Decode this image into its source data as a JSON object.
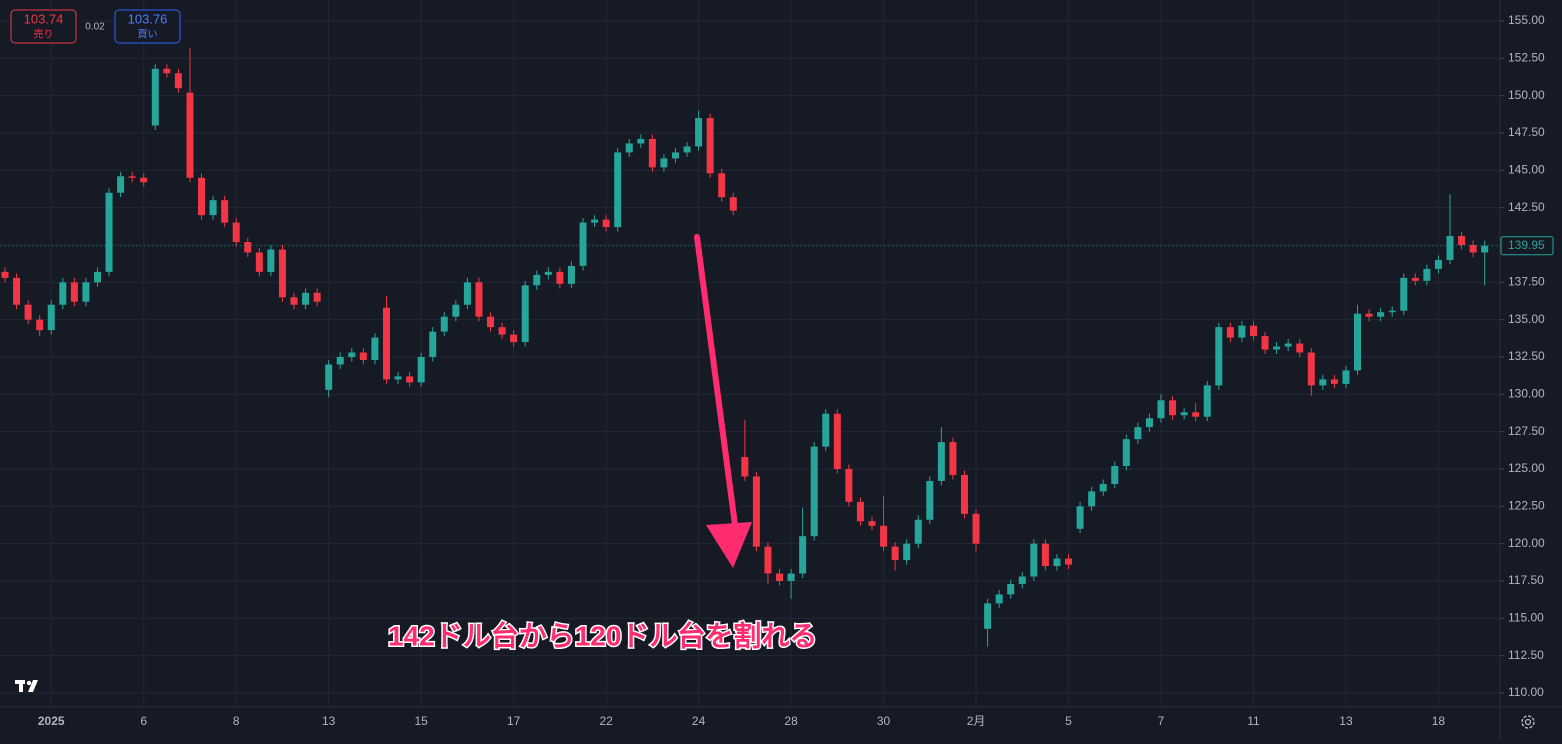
{
  "chart_data": {
    "type": "candlestick",
    "quote": {
      "sell_price": "103.74",
      "sell_label": "売り",
      "spread": "0.02",
      "buy_price": "103.76",
      "buy_label": "買い"
    },
    "annotation": "142ドル台から120ドル台を割れる",
    "up_color": "#26a69a",
    "down_color": "#f23645",
    "grid": true,
    "last_price": 139.95,
    "ylim": [
      110,
      155
    ],
    "yticks": [
      {
        "value": 110,
        "label": "110.00"
      },
      {
        "value": 112.5,
        "label": "112.50"
      },
      {
        "value": 115,
        "label": "115.00"
      },
      {
        "value": 117.5,
        "label": "117.50"
      },
      {
        "value": 120,
        "label": "120.00"
      },
      {
        "value": 122.5,
        "label": "122.50"
      },
      {
        "value": 125,
        "label": "125.00"
      },
      {
        "value": 127.5,
        "label": "127.50"
      },
      {
        "value": 130,
        "label": "130.00"
      },
      {
        "value": 132.5,
        "label": "132.50"
      },
      {
        "value": 135,
        "label": "135.00"
      },
      {
        "value": 137.5,
        "label": "137.50"
      },
      {
        "value": 140,
        "label": "140.00"
      },
      {
        "value": 142.5,
        "label": "142.50"
      },
      {
        "value": 145,
        "label": "145.00"
      },
      {
        "value": 147.5,
        "label": "147.50"
      },
      {
        "value": 150,
        "label": "150.00"
      },
      {
        "value": 152.5,
        "label": "152.50"
      },
      {
        "value": 155,
        "label": "155.00"
      }
    ],
    "categories": [
      null,
      null,
      null,
      null,
      "2025",
      null,
      null,
      null,
      null,
      null,
      null,
      null,
      "6",
      null,
      null,
      null,
      null,
      null,
      null,
      null,
      "8",
      null,
      null,
      null,
      null,
      null,
      null,
      null,
      "13",
      null,
      null,
      null,
      null,
      null,
      null,
      null,
      "15",
      null,
      null,
      null,
      null,
      null,
      null,
      null,
      "17",
      null,
      null,
      null,
      null,
      null,
      null,
      null,
      "22",
      null,
      null,
      null,
      null,
      null,
      null,
      null,
      "24",
      null,
      null,
      null,
      null,
      null,
      null,
      null,
      "28",
      null,
      null,
      null,
      null,
      null,
      null,
      null,
      "30",
      null,
      null,
      null,
      null,
      null,
      null,
      null,
      "2月",
      null,
      null,
      null,
      null,
      null,
      null,
      null,
      "5",
      null,
      null,
      null,
      null,
      null,
      null,
      null,
      "7",
      null,
      null,
      null,
      null,
      null,
      null,
      null,
      "11",
      null,
      null,
      null,
      null,
      null,
      null,
      null,
      "13",
      null,
      null,
      null,
      null,
      null,
      null,
      null,
      "18",
      null,
      null,
      null,
      null
    ],
    "open": [
      138.2,
      137.8,
      136.0,
      135.0,
      134.3,
      136.0,
      137.5,
      136.2,
      137.5,
      138.2,
      143.5,
      144.6,
      144.5,
      148.0,
      151.8,
      151.5,
      150.2,
      144.5,
      142.0,
      143.0,
      141.5,
      140.2,
      139.5,
      138.2,
      139.7,
      136.5,
      136.0,
      136.8,
      130.3,
      132.0,
      132.5,
      132.8,
      132.3,
      135.8,
      131.0,
      131.2,
      130.8,
      132.5,
      134.2,
      135.2,
      136.0,
      137.5,
      135.2,
      134.5,
      134.0,
      133.5,
      137.3,
      138.0,
      138.2,
      137.4,
      138.6,
      141.5,
      141.7,
      141.2,
      146.2,
      146.8,
      147.1,
      145.2,
      145.8,
      146.2,
      146.6,
      148.5,
      144.8,
      143.2,
      125.8,
      124.5,
      119.8,
      118.0,
      117.5,
      118.0,
      120.5,
      126.5,
      128.7,
      125.0,
      122.8,
      121.5,
      121.2,
      119.8,
      118.9,
      120.0,
      121.6,
      124.2,
      126.8,
      124.6,
      122.0,
      114.3,
      116.0,
      116.6,
      117.3,
      117.8,
      120.0,
      118.5,
      119.0,
      121.0,
      122.5,
      123.5,
      124.0,
      125.2,
      127.0,
      127.8,
      128.4,
      129.6,
      128.6,
      128.8,
      128.5,
      130.6,
      134.5,
      133.8,
      134.6,
      133.9,
      133.0,
      133.2,
      133.4,
      132.8,
      130.6,
      131.0,
      130.7,
      131.6,
      135.4,
      135.2,
      135.5,
      135.6,
      137.8,
      137.6,
      138.4,
      139.0,
      140.6,
      140.0,
      139.5
    ],
    "high": [
      138.5,
      138.1,
      136.3,
      135.3,
      136.3,
      137.8,
      137.8,
      137.8,
      138.5,
      143.8,
      144.9,
      144.9,
      144.8,
      152.1,
      152.1,
      151.8,
      153.2,
      144.8,
      143.3,
      143.3,
      141.8,
      140.5,
      139.8,
      140.0,
      140.0,
      136.8,
      137.1,
      137.1,
      132.3,
      132.8,
      133.1,
      133.1,
      134.1,
      136.6,
      131.5,
      131.5,
      132.8,
      134.5,
      135.5,
      136.3,
      137.8,
      137.8,
      135.5,
      134.8,
      134.3,
      137.6,
      138.3,
      138.5,
      138.5,
      138.9,
      141.8,
      142.0,
      142.0,
      146.5,
      147.1,
      147.4,
      147.4,
      146.1,
      146.5,
      146.9,
      149.0,
      148.8,
      145.1,
      143.5,
      128.3,
      124.8,
      120.1,
      118.3,
      118.3,
      122.4,
      126.8,
      129.0,
      129.0,
      125.3,
      123.1,
      121.8,
      123.2,
      120.1,
      120.3,
      121.9,
      124.5,
      127.8,
      127.1,
      124.9,
      122.3,
      116.3,
      116.9,
      117.6,
      118.1,
      120.3,
      120.3,
      119.3,
      119.3,
      122.8,
      123.8,
      124.3,
      125.5,
      127.3,
      128.1,
      128.7,
      130.0,
      129.9,
      129.1,
      129.4,
      130.9,
      134.8,
      134.8,
      134.9,
      134.9,
      134.2,
      133.5,
      133.7,
      133.7,
      133.1,
      131.3,
      131.3,
      131.9,
      136.0,
      135.7,
      135.8,
      135.9,
      138.1,
      138.1,
      138.7,
      139.3,
      143.4,
      140.9,
      140.3,
      140.3
    ],
    "low": [
      137.5,
      135.7,
      134.7,
      133.9,
      134.0,
      135.7,
      135.9,
      135.9,
      137.2,
      137.9,
      143.2,
      144.2,
      143.9,
      147.7,
      151.2,
      150.2,
      144.2,
      141.7,
      141.7,
      141.2,
      139.9,
      139.2,
      137.9,
      137.9,
      136.2,
      135.7,
      135.7,
      135.9,
      129.8,
      131.7,
      132.2,
      132.0,
      132.0,
      130.7,
      130.7,
      130.5,
      130.5,
      132.2,
      133.9,
      134.9,
      135.7,
      134.9,
      134.2,
      133.7,
      133.2,
      133.2,
      137.0,
      137.7,
      137.1,
      137.1,
      138.3,
      141.2,
      140.9,
      140.9,
      145.9,
      146.5,
      144.9,
      144.9,
      145.5,
      145.9,
      146.3,
      144.5,
      142.9,
      142.0,
      124.2,
      119.5,
      117.3,
      117.2,
      116.3,
      117.7,
      120.2,
      126.2,
      124.7,
      122.5,
      121.2,
      120.9,
      119.5,
      118.2,
      118.6,
      119.7,
      121.3,
      123.9,
      124.3,
      121.7,
      119.5,
      113.1,
      115.7,
      116.3,
      117.0,
      117.5,
      118.2,
      118.2,
      118.3,
      120.7,
      122.2,
      123.2,
      123.7,
      124.9,
      126.7,
      127.5,
      128.1,
      128.3,
      128.3,
      128.2,
      128.2,
      130.3,
      133.5,
      133.5,
      133.6,
      132.7,
      132.7,
      132.9,
      132.5,
      129.9,
      130.3,
      130.4,
      130.4,
      131.3,
      134.9,
      134.9,
      135.2,
      135.3,
      137.3,
      137.3,
      138.1,
      138.7,
      139.7,
      139.2,
      137.3
    ],
    "close": [
      137.8,
      136.0,
      135.0,
      134.3,
      136.0,
      137.5,
      136.2,
      137.5,
      138.2,
      143.5,
      144.6,
      144.5,
      144.2,
      151.8,
      151.5,
      150.5,
      144.5,
      142.0,
      143.0,
      141.5,
      140.2,
      139.5,
      138.2,
      139.7,
      136.5,
      136.0,
      136.8,
      136.2,
      132.0,
      132.5,
      132.8,
      132.3,
      133.8,
      131.0,
      131.2,
      130.8,
      132.5,
      134.2,
      135.2,
      136.0,
      137.5,
      135.2,
      134.5,
      134.0,
      133.5,
      137.3,
      138.0,
      138.2,
      137.4,
      138.6,
      141.5,
      141.7,
      141.2,
      146.2,
      146.8,
      147.1,
      145.2,
      145.8,
      146.2,
      146.6,
      148.5,
      144.8,
      143.2,
      142.3,
      124.5,
      119.8,
      118.0,
      117.5,
      118.0,
      120.5,
      126.5,
      128.7,
      125.0,
      122.8,
      121.5,
      121.2,
      119.8,
      118.9,
      120.0,
      121.6,
      124.2,
      126.8,
      124.6,
      122.0,
      120.0,
      116.0,
      116.6,
      117.3,
      117.8,
      120.0,
      118.5,
      119.0,
      118.6,
      122.5,
      123.5,
      124.0,
      125.2,
      127.0,
      127.8,
      128.4,
      129.6,
      128.6,
      128.8,
      128.5,
      130.6,
      134.5,
      133.8,
      134.6,
      133.9,
      133.0,
      133.2,
      133.4,
      132.8,
      130.6,
      131.0,
      130.7,
      131.6,
      135.4,
      135.2,
      135.5,
      135.6,
      137.8,
      137.6,
      138.4,
      139.0,
      140.6,
      140.0,
      139.5,
      139.95
    ]
  }
}
